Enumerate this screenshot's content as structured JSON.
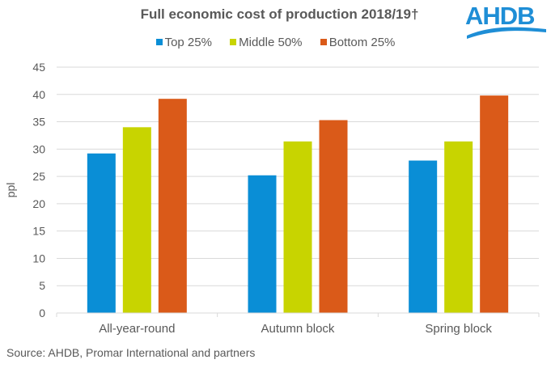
{
  "logo": {
    "text": "AHDB",
    "color": "#1E8ED6"
  },
  "source": "Source: AHDB, Promar International  and partners",
  "chart_data": {
    "type": "bar",
    "title": "Full economic cost of production 2018/19†",
    "xlabel": "",
    "ylabel": "ppl",
    "ylim": [
      0,
      45
    ],
    "yticks": [
      0,
      5,
      10,
      15,
      20,
      25,
      30,
      35,
      40,
      45
    ],
    "grid": true,
    "legend_position": "top-center",
    "categories": [
      "All-year-round",
      "Autumn block",
      "Spring block"
    ],
    "series": [
      {
        "name": "Top 25%",
        "color": "#0A8ED6",
        "values": [
          29.2,
          25.2,
          27.9
        ]
      },
      {
        "name": "Middle 50%",
        "color": "#C8D400",
        "values": [
          34.0,
          31.4,
          31.4
        ]
      },
      {
        "name": "Bottom 25%",
        "color": "#DA5A19",
        "values": [
          39.2,
          35.3,
          39.8
        ]
      }
    ]
  }
}
